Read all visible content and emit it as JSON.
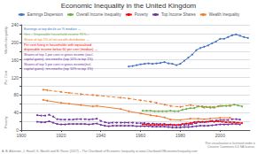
{
  "chart_data": {
    "type": "line",
    "title": "Economic Inequality in the United Kingdom",
    "ylabels": [
      "Wealth Inequality",
      "Per Cent",
      "Poverty"
    ],
    "xlim": [
      1900,
      2015
    ],
    "xticks": [
      1900,
      1920,
      1940,
      1960,
      1980,
      2000
    ],
    "ylim": [
      0,
      240
    ],
    "yticks": [
      0,
      {
        "value": 20,
        "label": null
      },
      40,
      {
        "value": 60,
        "label": null
      },
      80,
      {
        "value": 100,
        "label": null
      },
      120,
      {
        "value": 140,
        "label": null
      },
      160,
      {
        "value": 180,
        "label": null
      },
      200,
      {
        "value": 220,
        "label": null
      },
      240
    ],
    "grid": true,
    "legend": "top",
    "legend_labels": [
      "Earnings Dispersion",
      "Overall Income Inequality",
      "Poverty",
      "Top Income Shares",
      "Wealth Inequality"
    ],
    "series": [
      {
        "name": "Wealth Inequality",
        "color": "#ed7d31",
        "line_style": "dashed",
        "marker": "circle",
        "x": [
          1911,
          1913,
          1920,
          1924,
          1930,
          1936,
          1938,
          1950,
          1954,
          1960,
          1965,
          1968,
          1972,
          1975,
          1980,
          1985,
          1989,
          1992,
          1995,
          2000,
          2005
        ],
        "values": [
          92,
          91,
          87,
          85,
          82,
          80,
          79,
          74,
          72,
          68,
          65,
          62,
          58,
          55,
          53,
          57,
          54,
          51,
          53,
          55,
          56
        ]
      },
      {
        "name": "Wealth Inequality",
        "color": "#ed7d31",
        "line_style": "solid",
        "marker": "circle",
        "x": [
          1911,
          1913,
          1920,
          1924,
          1930,
          1936,
          1938,
          1950,
          1954,
          1960,
          1965,
          1968,
          1972,
          1975,
          1980,
          1985,
          1989,
          1992,
          1995,
          2000,
          2005
        ],
        "values": [
          69,
          67,
          62,
          60,
          57,
          54,
          55,
          48,
          43,
          38,
          34,
          32,
          29,
          24,
          23,
          26,
          26,
          25,
          26,
          28,
          28
        ]
      },
      {
        "name": "Top Income Shares",
        "color": "#7030a0",
        "line_style": "dashed",
        "marker": "circle",
        "x": [
          1908,
          1910,
          1912,
          1914,
          1916,
          1918,
          1920,
          1922,
          1924,
          1926,
          1928,
          1930,
          1932,
          1934,
          1936,
          1938,
          1940,
          1942,
          1944,
          1946,
          1948,
          1950,
          1952,
          1954,
          1956,
          1958,
          1960,
          1962,
          1964,
          1966,
          1968,
          1970,
          1972,
          1974,
          1976,
          1978,
          1980,
          1982,
          1984,
          1986,
          1988,
          1990,
          1992,
          1994,
          1996,
          1998,
          2000,
          2002,
          2004,
          2006,
          2008,
          2010
        ],
        "values": [
          34,
          33,
          33,
          35,
          31,
          25,
          24,
          24,
          24,
          24,
          25,
          25,
          25,
          24,
          25,
          26,
          21,
          18,
          16,
          17,
          17,
          17,
          17,
          17,
          17,
          16,
          16,
          16,
          15,
          15,
          14,
          14,
          14,
          12,
          11,
          11,
          11,
          12,
          12,
          14,
          16,
          18,
          18,
          19,
          21,
          22,
          23,
          23,
          23,
          25,
          25,
          24
        ]
      },
      {
        "name": "Top Income Shares",
        "color": "#7030a0",
        "line_style": "solid",
        "marker": "circle",
        "x": [
          1908,
          1910,
          1912,
          1914,
          1916,
          1918,
          1920,
          1922,
          1924,
          1926,
          1928,
          1930,
          1932,
          1934,
          1936,
          1938,
          1940,
          1942,
          1944,
          1946,
          1948,
          1950,
          1952,
          1954,
          1956,
          1958,
          1960,
          1962,
          1964,
          1966,
          1968,
          1970,
          1972,
          1974,
          1976,
          1978,
          1980,
          1982,
          1984,
          1986,
          1988,
          1990,
          1992,
          1994,
          1996,
          1998,
          2000,
          2002,
          2004,
          2006,
          2008,
          2010
        ],
        "values": [
          19,
          18,
          18,
          20,
          17,
          14,
          13,
          13,
          14,
          14,
          14,
          14,
          14,
          13,
          14,
          15,
          12,
          10,
          9,
          10,
          10,
          10,
          10,
          10,
          10,
          9,
          9,
          9,
          9,
          8,
          8,
          8,
          8,
          7,
          6,
          6,
          6,
          7,
          7,
          8,
          9,
          10,
          10,
          10,
          11,
          12,
          13,
          13,
          13,
          14,
          14,
          13
        ]
      },
      {
        "name": "Earnings Dispersion",
        "color": "#4472c4",
        "line_style": "solid",
        "marker": "circle",
        "x": [
          1954,
          1956,
          1958,
          1960,
          1962,
          1964,
          1966,
          1968,
          1970,
          1972,
          1974,
          1976,
          1978,
          1980,
          1982,
          1984,
          1986,
          1988,
          1990,
          1992,
          1994,
          1996,
          1998,
          2000,
          2002,
          2004,
          2006,
          2008,
          2010,
          2012,
          2014
        ],
        "values": [
          145,
          146,
          148,
          150,
          151,
          152,
          151,
          152,
          153,
          155,
          152,
          151,
          148,
          151,
          158,
          165,
          172,
          182,
          187,
          190,
          193,
          198,
          202,
          208,
          208,
          212,
          216,
          218,
          215,
          212,
          210
        ]
      },
      {
        "name": "Overall Income Inequality",
        "color": "#70ad47",
        "line_style": "solid",
        "marker": "circle",
        "x": [
          1961,
          1963,
          1965,
          1967,
          1969,
          1971,
          1973,
          1975,
          1977,
          1979,
          1981,
          1983,
          1985,
          1987,
          1989,
          1991,
          1993,
          1995,
          1997,
          1999,
          2001,
          2003,
          2005,
          2007,
          2009,
          2011
        ],
        "values": [
          44,
          44,
          44,
          43,
          43,
          43,
          43,
          44,
          43,
          43,
          46,
          48,
          50,
          50,
          54,
          54,
          53,
          51,
          51,
          54,
          55,
          55,
          55,
          58,
          56,
          54
        ]
      },
      {
        "name": "Poverty",
        "color": "#ff0000",
        "line_style": "solid",
        "marker": "circle",
        "x": [
          1961,
          1963,
          1965,
          1967,
          1969,
          1971,
          1973,
          1975,
          1977,
          1979,
          1981,
          1983,
          1985,
          1987,
          1989,
          1991,
          1993,
          1995,
          1997,
          1999,
          2001,
          2003,
          2005,
          2007,
          2009,
          2011
        ],
        "values": [
          13,
          13,
          12,
          12,
          12,
          12,
          12,
          13,
          12,
          12,
          14,
          15,
          16,
          18,
          19,
          19,
          19,
          20,
          19,
          20,
          19,
          18,
          18,
          18,
          17,
          16
        ]
      }
    ],
    "annotations": [
      {
        "text": "Earnings at top decile as % median →",
        "color": "#4472c4"
      },
      {
        "text": "Gini – Disposable household income 95%→",
        "color": "#70ad47"
      },
      {
        "text": "Share of top 1% of net wealth distribution →",
        "color": "#ed7d31"
      },
      {
        "text": "Per cent living in households with equivalised\ndisposable income below 60 per cent (median) →",
        "color": "#ff0000"
      },
      {
        "text": "Shares of top 1 per cent in gross income (excl.\ncapital gains), ten-nineths (top 10% to top 1%)",
        "color": "#7030a0"
      },
      {
        "text": "Shares of top 5 per cent in gross income(incl.\ncapital gains), ten-nineths (top 10% to top 1%)",
        "color": "#7030a0"
      }
    ],
    "footnote": "A. B. Atkinson, J. Hasell, S. Morelli and M. Roser (2017) – The Chartbook of Economic Inequality at www.ChartbookOfEconomicInequality.com",
    "license": "This visualisation is licensed under a\nCreative Commons 4.0 SA license."
  }
}
